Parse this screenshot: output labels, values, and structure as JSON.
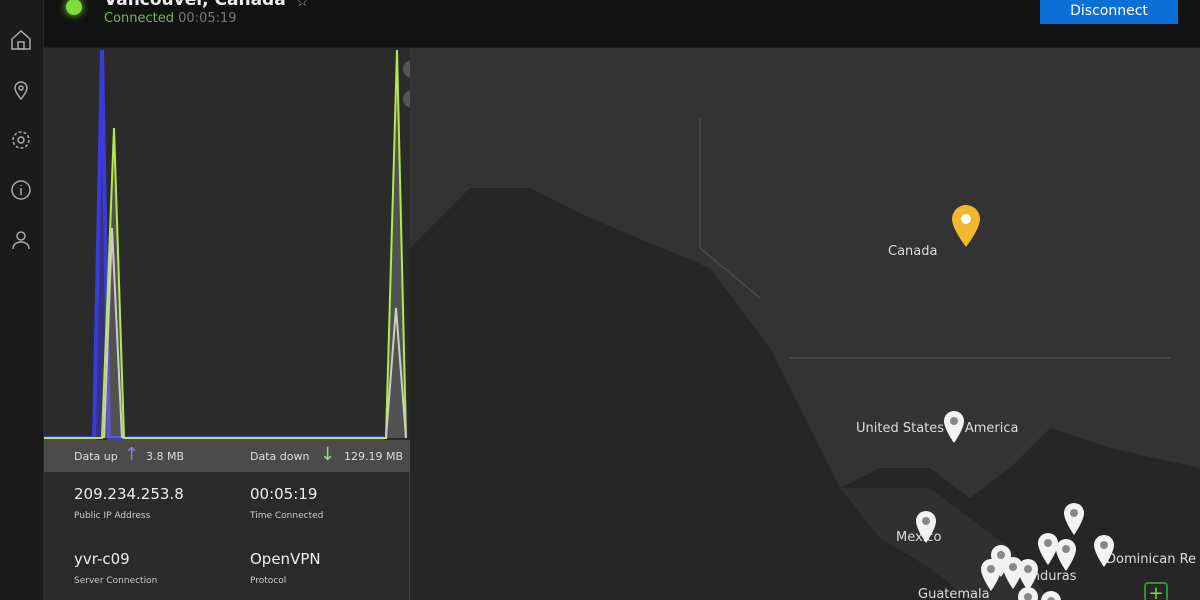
{
  "header": {
    "location": "Vancouver, Canada",
    "status": "Connected",
    "elapsed": "00:05:19",
    "disconnect_label": "Disconnect"
  },
  "sidebar": {
    "items": [
      {
        "icon": "home-icon"
      },
      {
        "icon": "location-pin-icon"
      },
      {
        "icon": "gear-icon"
      },
      {
        "icon": "info-icon"
      },
      {
        "icon": "user-icon"
      }
    ]
  },
  "stats": {
    "up_label": "Data up",
    "up_value": "3.8 MB",
    "down_label": "Data down",
    "down_value": "129.19 MB"
  },
  "info": {
    "ip": "209.234.253.8",
    "ip_label": "Public IP Address",
    "time": "00:05:19",
    "time_label": "Time Connected",
    "server": "yvr-c09",
    "server_label": "Server Connection",
    "protocol": "OpenVPN",
    "protocol_label": "Protocol"
  },
  "map": {
    "labels": {
      "canada": "Canada",
      "usa": "United States of America",
      "mexico": "Mexico",
      "dominican": "Dominican Re",
      "honduras": "Honduras",
      "guatemala": "Guatemala"
    },
    "selected_pin_color": "#f2b731"
  },
  "colors": {
    "connected": "#7fdc3c",
    "accent": "#0a6fd8",
    "upload": "#3b3bd6",
    "download": "#b6e84a"
  }
}
